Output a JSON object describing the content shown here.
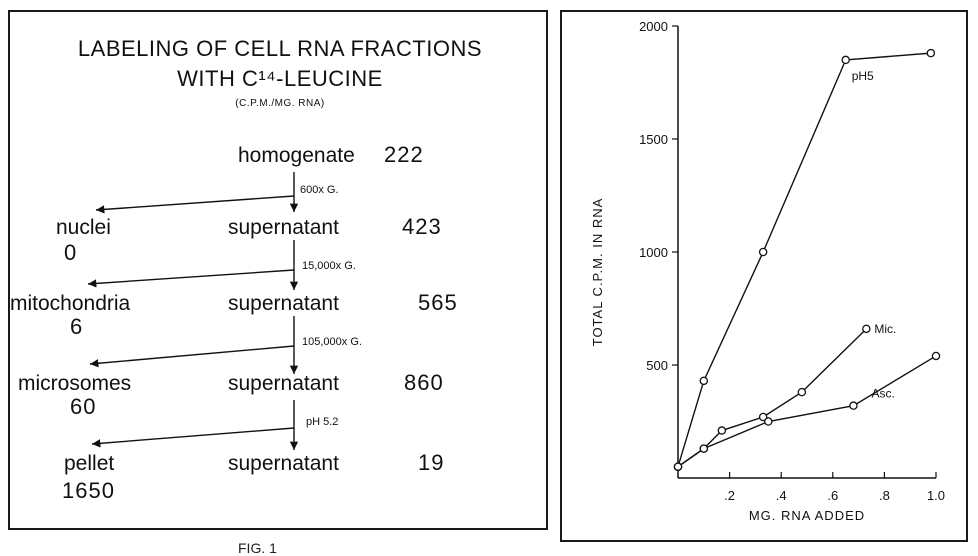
{
  "left": {
    "title_line1": "LABELING OF CELL RNA FRACTIONS",
    "title_line2": "WITH C¹⁴-LEUCINE",
    "title_line3": "(C.P.M./MG. RNA)",
    "homogenate": {
      "label": "homogenate",
      "value": "222"
    },
    "steps": [
      {
        "force": "600x G.",
        "sediment": "nuclei",
        "sediment_value": "0",
        "supernatant": "supernatant",
        "supernatant_value": "423"
      },
      {
        "force": "15,000x G.",
        "sediment": "mitochondria",
        "sediment_value": "6",
        "supernatant": "supernatant",
        "supernatant_value": "565"
      },
      {
        "force": "105,000x G.",
        "sediment": "microsomes",
        "sediment_value": "60",
        "supernatant": "supernatant",
        "supernatant_value": "860"
      },
      {
        "force": "pH 5.2",
        "sediment": "pellet",
        "sediment_value": "1650",
        "supernatant": "supernatant",
        "supernatant_value": "19"
      }
    ]
  },
  "caption": "FIG. 1",
  "chart_data": {
    "type": "line",
    "xlabel": "MG. RNA ADDED",
    "ylabel": "TOTAL C.P.M. IN RNA",
    "xlim": [
      0,
      1.0
    ],
    "ylim": [
      0,
      2000
    ],
    "xticks": [
      ".2",
      ".4",
      ".6",
      ".8",
      "1.0"
    ],
    "yticks": [
      "500",
      "1000",
      "1500",
      "2000"
    ],
    "series": [
      {
        "name": "pH5",
        "x": [
          0,
          0.1,
          0.33,
          0.65,
          0.98
        ],
        "y": [
          50,
          430,
          1000,
          1850,
          1880
        ]
      },
      {
        "name": "Mic.",
        "x": [
          0,
          0.1,
          0.17,
          0.33,
          0.48,
          0.73
        ],
        "y": [
          50,
          130,
          210,
          270,
          380,
          660
        ]
      },
      {
        "name": "Asc.",
        "x": [
          0,
          0.1,
          0.35,
          0.68,
          1.0
        ],
        "y": [
          50,
          130,
          250,
          320,
          540
        ]
      }
    ]
  }
}
